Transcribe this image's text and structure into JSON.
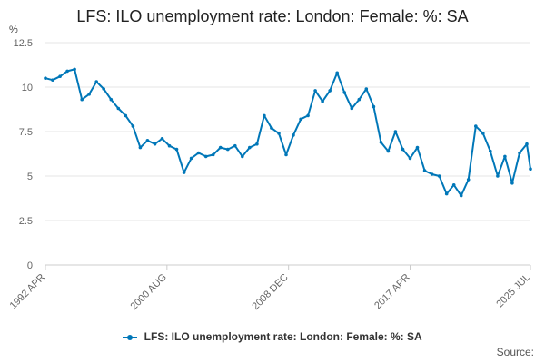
{
  "chart_data": {
    "type": "line",
    "title": "LFS: ILO unemployment rate: London: Female: %: SA",
    "ylabel": "%",
    "xlabel": "",
    "ylim": [
      0,
      12.5
    ],
    "y_ticks": [
      "0",
      "2.5",
      "5",
      "7.5",
      "10",
      "12.5"
    ],
    "x_ticks": [
      "1992 APR",
      "2000 AUG",
      "2008 DEC",
      "2017 APR",
      "2025 JUL"
    ],
    "grid": true,
    "legend_position": "bottom",
    "color": "#0077b8",
    "series": [
      {
        "name": "LFS: ILO unemployment rate: London: Female: %: SA",
        "x": [
          "1992 APR",
          "1992 OCT",
          "1993 APR",
          "1993 OCT",
          "1994 APR",
          "1994 OCT",
          "1995 APR",
          "1995 OCT",
          "1996 APR",
          "1996 OCT",
          "1997 APR",
          "1997 OCT",
          "1998 APR",
          "1998 OCT",
          "1999 APR",
          "1999 OCT",
          "2000 APR",
          "2000 OCT",
          "2001 APR",
          "2001 OCT",
          "2002 APR",
          "2002 OCT",
          "2003 APR",
          "2003 OCT",
          "2004 APR",
          "2004 OCT",
          "2005 APR",
          "2005 OCT",
          "2006 APR",
          "2006 OCT",
          "2007 APR",
          "2007 OCT",
          "2008 APR",
          "2008 OCT",
          "2009 APR",
          "2009 OCT",
          "2010 APR",
          "2010 OCT",
          "2011 APR",
          "2011 OCT",
          "2012 APR",
          "2012 OCT",
          "2013 APR",
          "2013 OCT",
          "2014 APR",
          "2014 OCT",
          "2015 APR",
          "2015 OCT",
          "2016 APR",
          "2016 OCT",
          "2017 APR",
          "2017 OCT",
          "2018 APR",
          "2018 OCT",
          "2019 APR",
          "2019 OCT",
          "2020 APR",
          "2020 OCT",
          "2021 APR",
          "2021 OCT",
          "2022 APR",
          "2022 OCT",
          "2023 APR",
          "2023 OCT",
          "2024 APR",
          "2024 OCT",
          "2025 APR",
          "2025 JUL"
        ],
        "values": [
          10.5,
          10.4,
          10.6,
          10.9,
          11.0,
          9.3,
          9.6,
          10.3,
          9.9,
          9.3,
          8.8,
          8.4,
          7.8,
          6.6,
          7.0,
          6.8,
          7.1,
          6.7,
          6.5,
          5.2,
          6.0,
          6.3,
          6.1,
          6.2,
          6.6,
          6.5,
          6.7,
          6.1,
          6.6,
          6.8,
          8.4,
          7.7,
          7.4,
          6.2,
          7.3,
          8.2,
          8.4,
          9.8,
          9.2,
          9.8,
          10.8,
          9.7,
          8.8,
          9.3,
          9.9,
          8.9,
          6.9,
          6.4,
          7.5,
          6.5,
          6.0,
          6.6,
          5.3,
          5.1,
          5.0,
          4.0,
          4.5,
          3.9,
          4.8,
          7.8,
          7.4,
          6.4,
          5.0,
          6.1,
          4.6,
          6.3,
          6.8,
          5.4
        ]
      }
    ]
  },
  "legend": {
    "label": "LFS: ILO unemployment rate: London: Female: %: SA"
  },
  "source": "Source:"
}
